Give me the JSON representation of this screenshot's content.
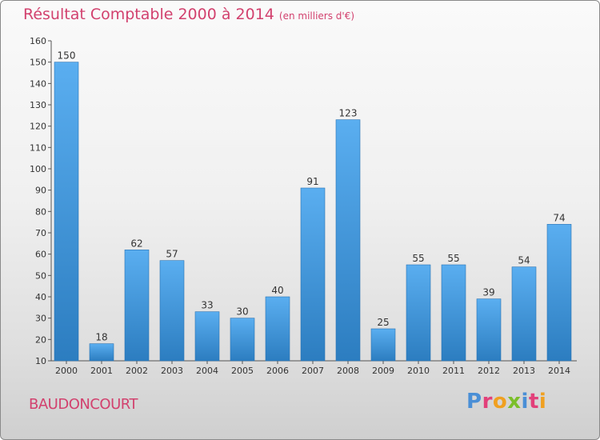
{
  "header": {
    "title": "Résultat Comptable 2000 à 2014",
    "subtitle": "(en milliers d'€)"
  },
  "footer": {
    "city": "BAUDONCOURT",
    "brand": "Proxiti"
  },
  "colors": {
    "title": "#d2416e",
    "bar_top": "#5aaef0",
    "bar_bottom": "#2c7dc0",
    "brand_letters": [
      "#4a8fd6",
      "#e2407a",
      "#f0a020",
      "#7bbf2a",
      "#4a8fd6",
      "#e2407a",
      "#f0a020"
    ]
  },
  "chart_data": {
    "type": "bar",
    "title": "Résultat Comptable 2000 à 2014",
    "subtitle": "(en milliers d'€)",
    "xlabel": "",
    "ylabel": "",
    "categories": [
      "2000",
      "2001",
      "2002",
      "2003",
      "2004",
      "2005",
      "2006",
      "2007",
      "2008",
      "2009",
      "2010",
      "2011",
      "2012",
      "2013",
      "2014"
    ],
    "values": [
      150,
      18,
      62,
      57,
      33,
      30,
      40,
      91,
      123,
      25,
      55,
      55,
      39,
      54,
      74
    ],
    "ylim": [
      10,
      160
    ],
    "yticks": [
      10,
      20,
      30,
      40,
      50,
      60,
      70,
      80,
      90,
      100,
      110,
      120,
      130,
      140,
      150,
      160
    ],
    "grid": false,
    "data_labels": true
  }
}
